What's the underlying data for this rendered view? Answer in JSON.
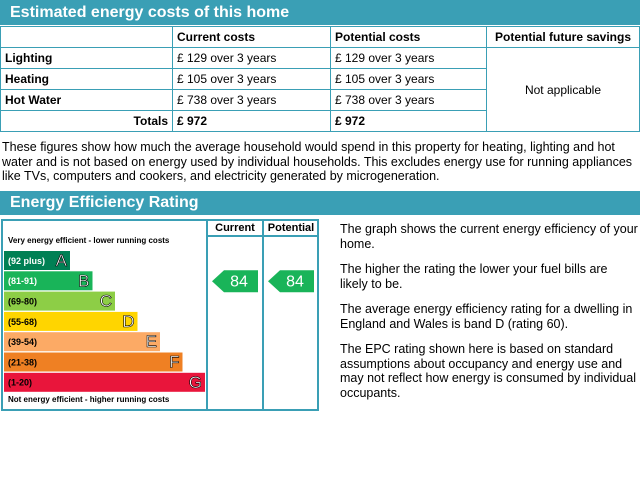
{
  "costs": {
    "title": "Estimated energy costs of this home",
    "headers": [
      "Current costs",
      "Potential costs",
      "Potential future savings"
    ],
    "rows": [
      {
        "label": "Lighting",
        "current": "£ 129 over 3 years",
        "potential": "£ 129 over 3 years"
      },
      {
        "label": "Heating",
        "current": "£ 105 over 3 years",
        "potential": "£ 105 over 3 years"
      },
      {
        "label": "Hot Water",
        "current": "£ 738 over 3 years",
        "potential": "£ 738 over 3 years"
      }
    ],
    "totals": {
      "label": "Totals",
      "current": "£ 972",
      "potential": "£ 972"
    },
    "savings": "Not applicable",
    "note": "These figures show how much the average household would spend in this property for heating, lighting and hot water and is not based on energy used by individual households. This excludes energy use for running appliances like TVs, computers and cookers, and electricity generated by microgeneration."
  },
  "rating": {
    "title": "Energy Efficiency Rating",
    "columns": [
      "Current",
      "Potential"
    ],
    "top_label": "Very energy efficient - lower running costs",
    "bottom_label": "Not energy efficient - higher running costs",
    "bands": [
      {
        "range": "(92 plus)",
        "letter": "A",
        "color": "#008054"
      },
      {
        "range": "(81-91)",
        "letter": "B",
        "color": "#19b459"
      },
      {
        "range": "(69-80)",
        "letter": "C",
        "color": "#8dce46"
      },
      {
        "range": "(55-68)",
        "letter": "D",
        "color": "#ffd500"
      },
      {
        "range": "(39-54)",
        "letter": "E",
        "color": "#fcaa65"
      },
      {
        "range": "(21-38)",
        "letter": "F",
        "color": "#ef8023"
      },
      {
        "range": "(1-20)",
        "letter": "G",
        "color": "#e9153b"
      }
    ],
    "current": 84,
    "potential": 84,
    "paragraphs": [
      "The graph shows the current energy efficiency of your home.",
      "The higher the rating the lower your fuel bills are likely to be.",
      "The average energy efficiency rating for a dwelling in England and Wales is band D (rating 60).",
      "The EPC rating shown here is based on standard assumptions about occupancy and energy use and may not reflect how energy is consumed by individual occupants."
    ]
  }
}
